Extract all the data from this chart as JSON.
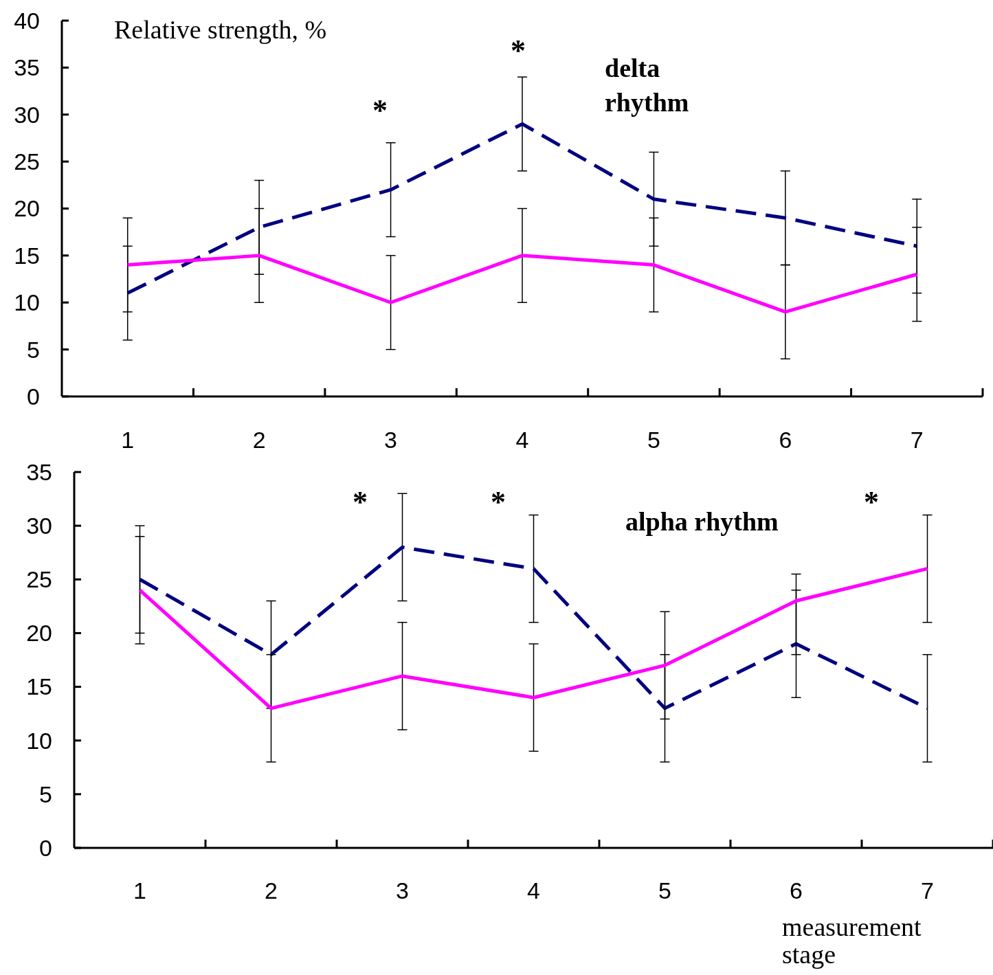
{
  "chart_data": [
    {
      "type": "line",
      "ylabel": "Relative strength, %",
      "categories": [
        "1",
        "2",
        "3",
        "4",
        "5",
        "6",
        "7"
      ],
      "ylim": [
        0,
        40
      ],
      "yticks": [
        0,
        5,
        10,
        15,
        20,
        25,
        30,
        35,
        40
      ],
      "grid": false,
      "series": [
        {
          "color": "#000080",
          "line_style": "dashed",
          "values": [
            11,
            18,
            22,
            29,
            21,
            19,
            16
          ],
          "errors": [
            5,
            5,
            5,
            5,
            5,
            5,
            5
          ]
        },
        {
          "color": "#ff00ff",
          "line_style": "solid",
          "values": [
            14,
            15,
            10,
            15,
            14,
            9,
            13
          ],
          "errors": [
            5,
            5,
            5,
            5,
            5,
            5,
            5
          ]
        }
      ],
      "annotations": [
        "*",
        "*",
        "delta\nrhythm"
      ]
    },
    {
      "type": "line",
      "xlabel": "measurement\nstage",
      "categories": [
        "1",
        "2",
        "3",
        "4",
        "5",
        "6",
        "7"
      ],
      "ylim": [
        0,
        35
      ],
      "yticks": [
        0,
        5,
        10,
        15,
        20,
        25,
        30,
        35
      ],
      "grid": false,
      "series": [
        {
          "color": "#000080",
          "line_style": "dashed",
          "values": [
            25,
            18,
            28,
            26,
            13,
            19,
            13
          ],
          "errors": [
            5,
            5,
            5,
            5,
            5,
            5,
            5
          ]
        },
        {
          "color": "#ff00ff",
          "line_style": "solid",
          "values": [
            24,
            13,
            16,
            14,
            17,
            23,
            26
          ],
          "errors": [
            5,
            5,
            5,
            5,
            5,
            [
              18,
              25.5
            ],
            5
          ]
        }
      ],
      "annotations": [
        "*",
        "*",
        "*",
        "alpha rhythm"
      ]
    }
  ]
}
